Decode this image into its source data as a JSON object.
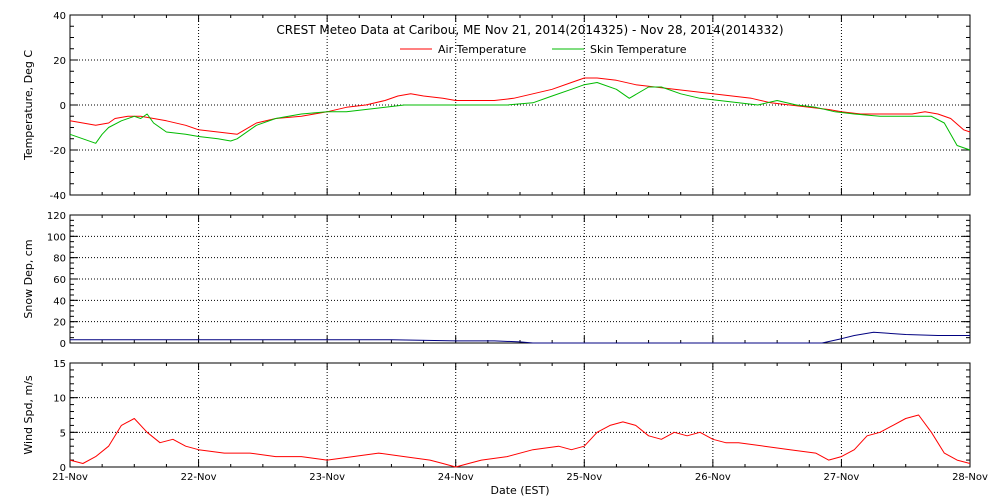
{
  "chart_data": [
    {
      "type": "line",
      "title": "CREST Meteo Data at Caribou, ME   Nov 21, 2014(2014325) - Nov 28, 2014(2014332)",
      "ylabel": "Temperature, Deg C",
      "xlabel": "",
      "ylim": [
        -40,
        40
      ],
      "yticks": [
        "40",
        "20",
        "0",
        "-20",
        "-40"
      ],
      "xlim": [
        0,
        7
      ],
      "grid": true,
      "legend": "top-center",
      "series": [
        {
          "name": "Air Temperature",
          "color": "#ff0000",
          "x": [
            0,
            0.1,
            0.2,
            0.3,
            0.35,
            0.45,
            0.55,
            0.65,
            0.75,
            0.9,
            1.0,
            1.15,
            1.3,
            1.45,
            1.6,
            1.8,
            2.0,
            2.15,
            2.3,
            2.45,
            2.55,
            2.65,
            2.75,
            2.9,
            3.0,
            3.15,
            3.3,
            3.45,
            3.6,
            3.75,
            3.9,
            4.0,
            4.1,
            4.25,
            4.4,
            4.55,
            4.7,
            4.85,
            5.0,
            5.15,
            5.3,
            5.45,
            5.6,
            5.75,
            5.9,
            6.0,
            6.15,
            6.3,
            6.45,
            6.55,
            6.65,
            6.75,
            6.85,
            6.95,
            7.0
          ],
          "y": [
            -7,
            -8,
            -9,
            -8,
            -6,
            -5,
            -5,
            -6,
            -7,
            -9,
            -11,
            -12,
            -13,
            -8,
            -6,
            -5,
            -3,
            -1,
            0,
            2,
            4,
            5,
            4,
            3,
            2,
            2,
            2,
            3,
            5,
            7,
            10,
            12,
            12,
            11,
            9,
            8,
            7,
            6,
            5,
            4,
            3,
            1,
            0,
            -1,
            -2,
            -3,
            -4,
            -4,
            -4,
            -4,
            -3,
            -4,
            -6,
            -11,
            -12
          ]
        },
        {
          "name": "Skin Temperature",
          "color": "#00bb00",
          "x": [
            0,
            0.1,
            0.2,
            0.25,
            0.3,
            0.4,
            0.5,
            0.55,
            0.6,
            0.65,
            0.75,
            0.9,
            1.0,
            1.15,
            1.25,
            1.3,
            1.45,
            1.6,
            1.8,
            2.0,
            2.15,
            2.3,
            2.45,
            2.6,
            2.8,
            3.0,
            3.2,
            3.4,
            3.6,
            3.75,
            3.9,
            4.0,
            4.1,
            4.25,
            4.35,
            4.5,
            4.6,
            4.75,
            4.9,
            5.05,
            5.2,
            5.35,
            5.5,
            5.65,
            5.8,
            5.95,
            6.1,
            6.3,
            6.5,
            6.6,
            6.7,
            6.8,
            6.9,
            7.0
          ],
          "y": [
            -13,
            -15,
            -17,
            -13,
            -10,
            -7,
            -5,
            -6,
            -4,
            -8,
            -12,
            -13,
            -14,
            -15,
            -16,
            -15,
            -9,
            -6,
            -4,
            -3,
            -3,
            -2,
            -1,
            0,
            0,
            0,
            0,
            0,
            1,
            4,
            7,
            9,
            10,
            7,
            3,
            8,
            8,
            5,
            3,
            2,
            1,
            0,
            2,
            0,
            -1,
            -3,
            -4,
            -5,
            -5,
            -5,
            -5,
            -8,
            -18,
            -20
          ]
        }
      ]
    },
    {
      "type": "line",
      "title": "",
      "ylabel": "Snow Dep, cm",
      "xlabel": "",
      "ylim": [
        0,
        120
      ],
      "yticks": [
        "120",
        "100",
        "80",
        "60",
        "40",
        "20",
        "0"
      ],
      "xlim": [
        0,
        7
      ],
      "grid": true,
      "series": [
        {
          "color": "#000080",
          "x": [
            0,
            0.5,
            1.0,
            1.5,
            2.0,
            2.5,
            3.0,
            3.3,
            3.5,
            3.6,
            3.75,
            4.0,
            5.0,
            5.5,
            5.7,
            5.85,
            6.0,
            6.1,
            6.25,
            6.5,
            6.75,
            7.0
          ],
          "y": [
            3,
            3,
            3,
            3,
            3,
            3,
            2,
            2,
            1,
            0,
            0,
            0,
            0,
            0,
            0,
            0,
            4,
            7,
            10,
            8,
            7,
            7
          ]
        }
      ]
    },
    {
      "type": "line",
      "title": "",
      "ylabel": "Wind Spd, m/s",
      "xlabel": "Date (EST)",
      "ylim": [
        0,
        15
      ],
      "yticks": [
        "15",
        "10",
        "5",
        "0"
      ],
      "xlim": [
        0,
        7
      ],
      "xticks": [
        "21-Nov",
        "22-Nov",
        "23-Nov",
        "24-Nov",
        "25-Nov",
        "26-Nov",
        "27-Nov",
        "28-Nov"
      ],
      "grid": true,
      "series": [
        {
          "color": "#ff0000",
          "x": [
            0,
            0.1,
            0.2,
            0.3,
            0.4,
            0.5,
            0.6,
            0.7,
            0.8,
            0.9,
            1.0,
            1.2,
            1.4,
            1.6,
            1.8,
            2.0,
            2.2,
            2.4,
            2.6,
            2.8,
            2.9,
            3.0,
            3.1,
            3.2,
            3.4,
            3.6,
            3.8,
            3.9,
            4.0,
            4.1,
            4.2,
            4.3,
            4.4,
            4.5,
            4.6,
            4.7,
            4.8,
            4.9,
            5.0,
            5.1,
            5.2,
            5.4,
            5.6,
            5.8,
            5.9,
            6.0,
            6.1,
            6.2,
            6.3,
            6.4,
            6.5,
            6.6,
            6.7,
            6.8,
            6.9,
            7.0
          ],
          "y": [
            1,
            0.5,
            1.5,
            3,
            6,
            7,
            5,
            3.5,
            4,
            3,
            2.5,
            2,
            2,
            1.5,
            1.5,
            1,
            1.5,
            2,
            1.5,
            1,
            0.5,
            0,
            0.5,
            1,
            1.5,
            2.5,
            3,
            2.5,
            3,
            5,
            6,
            6.5,
            6,
            4.5,
            4,
            5,
            4.5,
            5,
            4,
            3.5,
            3.5,
            3,
            2.5,
            2,
            1,
            1.5,
            2.5,
            4.5,
            5,
            6,
            7,
            7.5,
            5,
            2,
            1,
            0.5
          ]
        }
      ]
    }
  ]
}
